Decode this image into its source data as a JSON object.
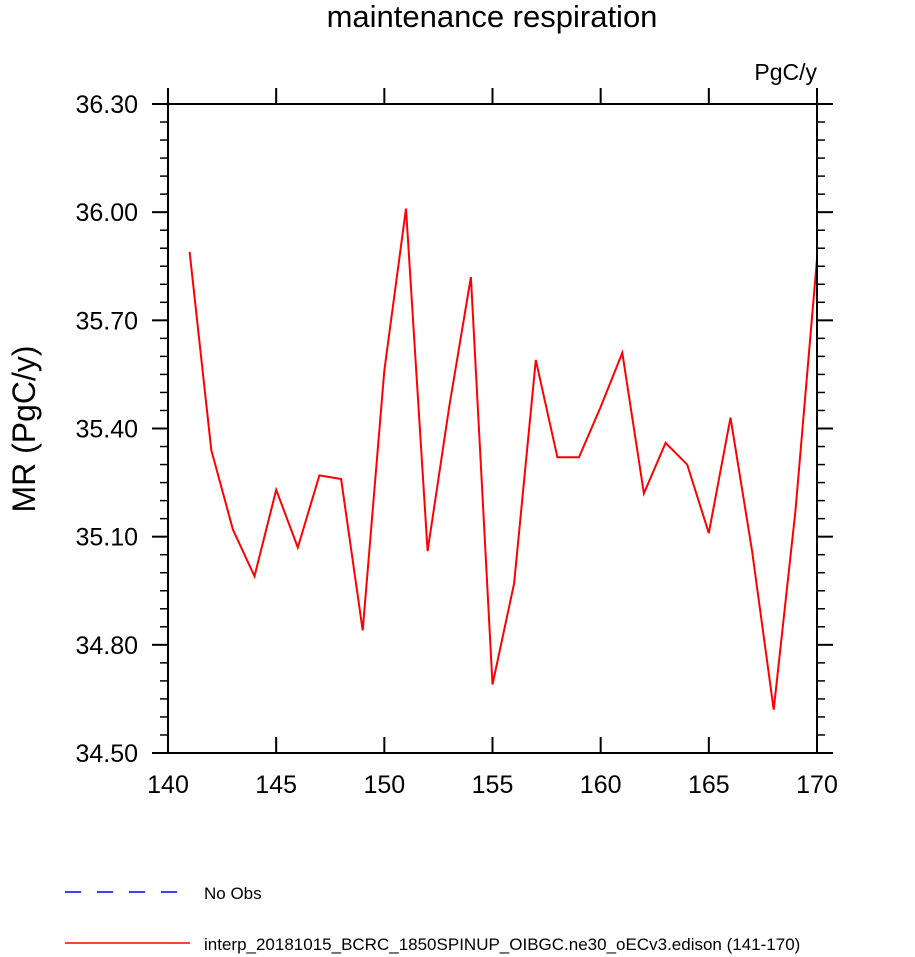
{
  "chart_data": {
    "type": "line",
    "title": "maintenance respiration",
    "units_label": "PgC/y",
    "xlabel": "",
    "ylabel": "MR  (PgC/y)",
    "xlim": [
      140,
      170
    ],
    "ylim": [
      34.5,
      36.3
    ],
    "xticks": [
      "140",
      "145",
      "150",
      "155",
      "160",
      "165",
      "170"
    ],
    "yticks": [
      "34.50",
      "34.80",
      "35.10",
      "35.40",
      "35.70",
      "36.00",
      "36.30"
    ],
    "series": [
      {
        "name": "interp_20181015_BCRC_1850SPINUP_OIBGC.ne30_oECv3.edison (141-170)",
        "color": "#ff0000",
        "style": "solid",
        "x": [
          141,
          142,
          143,
          144,
          145,
          146,
          147,
          148,
          149,
          150,
          151,
          152,
          153,
          154,
          155,
          156,
          157,
          158,
          159,
          160,
          161,
          162,
          163,
          164,
          165,
          166,
          167,
          168,
          169,
          170
        ],
        "values": [
          35.89,
          35.34,
          35.12,
          34.99,
          35.23,
          35.07,
          35.27,
          35.26,
          34.84,
          35.56,
          36.01,
          35.06,
          35.46,
          35.82,
          34.69,
          34.97,
          35.59,
          35.32,
          35.32,
          35.46,
          35.61,
          35.22,
          35.36,
          35.3,
          35.11,
          35.43,
          35.06,
          34.62,
          35.17,
          35.87
        ]
      }
    ],
    "legend": [
      {
        "label": "No Obs",
        "color": "#0000ff",
        "style": "dashed"
      },
      {
        "label": "interp_20181015_BCRC_1850SPINUP_OIBGC.ne30_oECv3.edison (141-170)",
        "color": "#ff0000",
        "style": "solid"
      }
    ]
  }
}
